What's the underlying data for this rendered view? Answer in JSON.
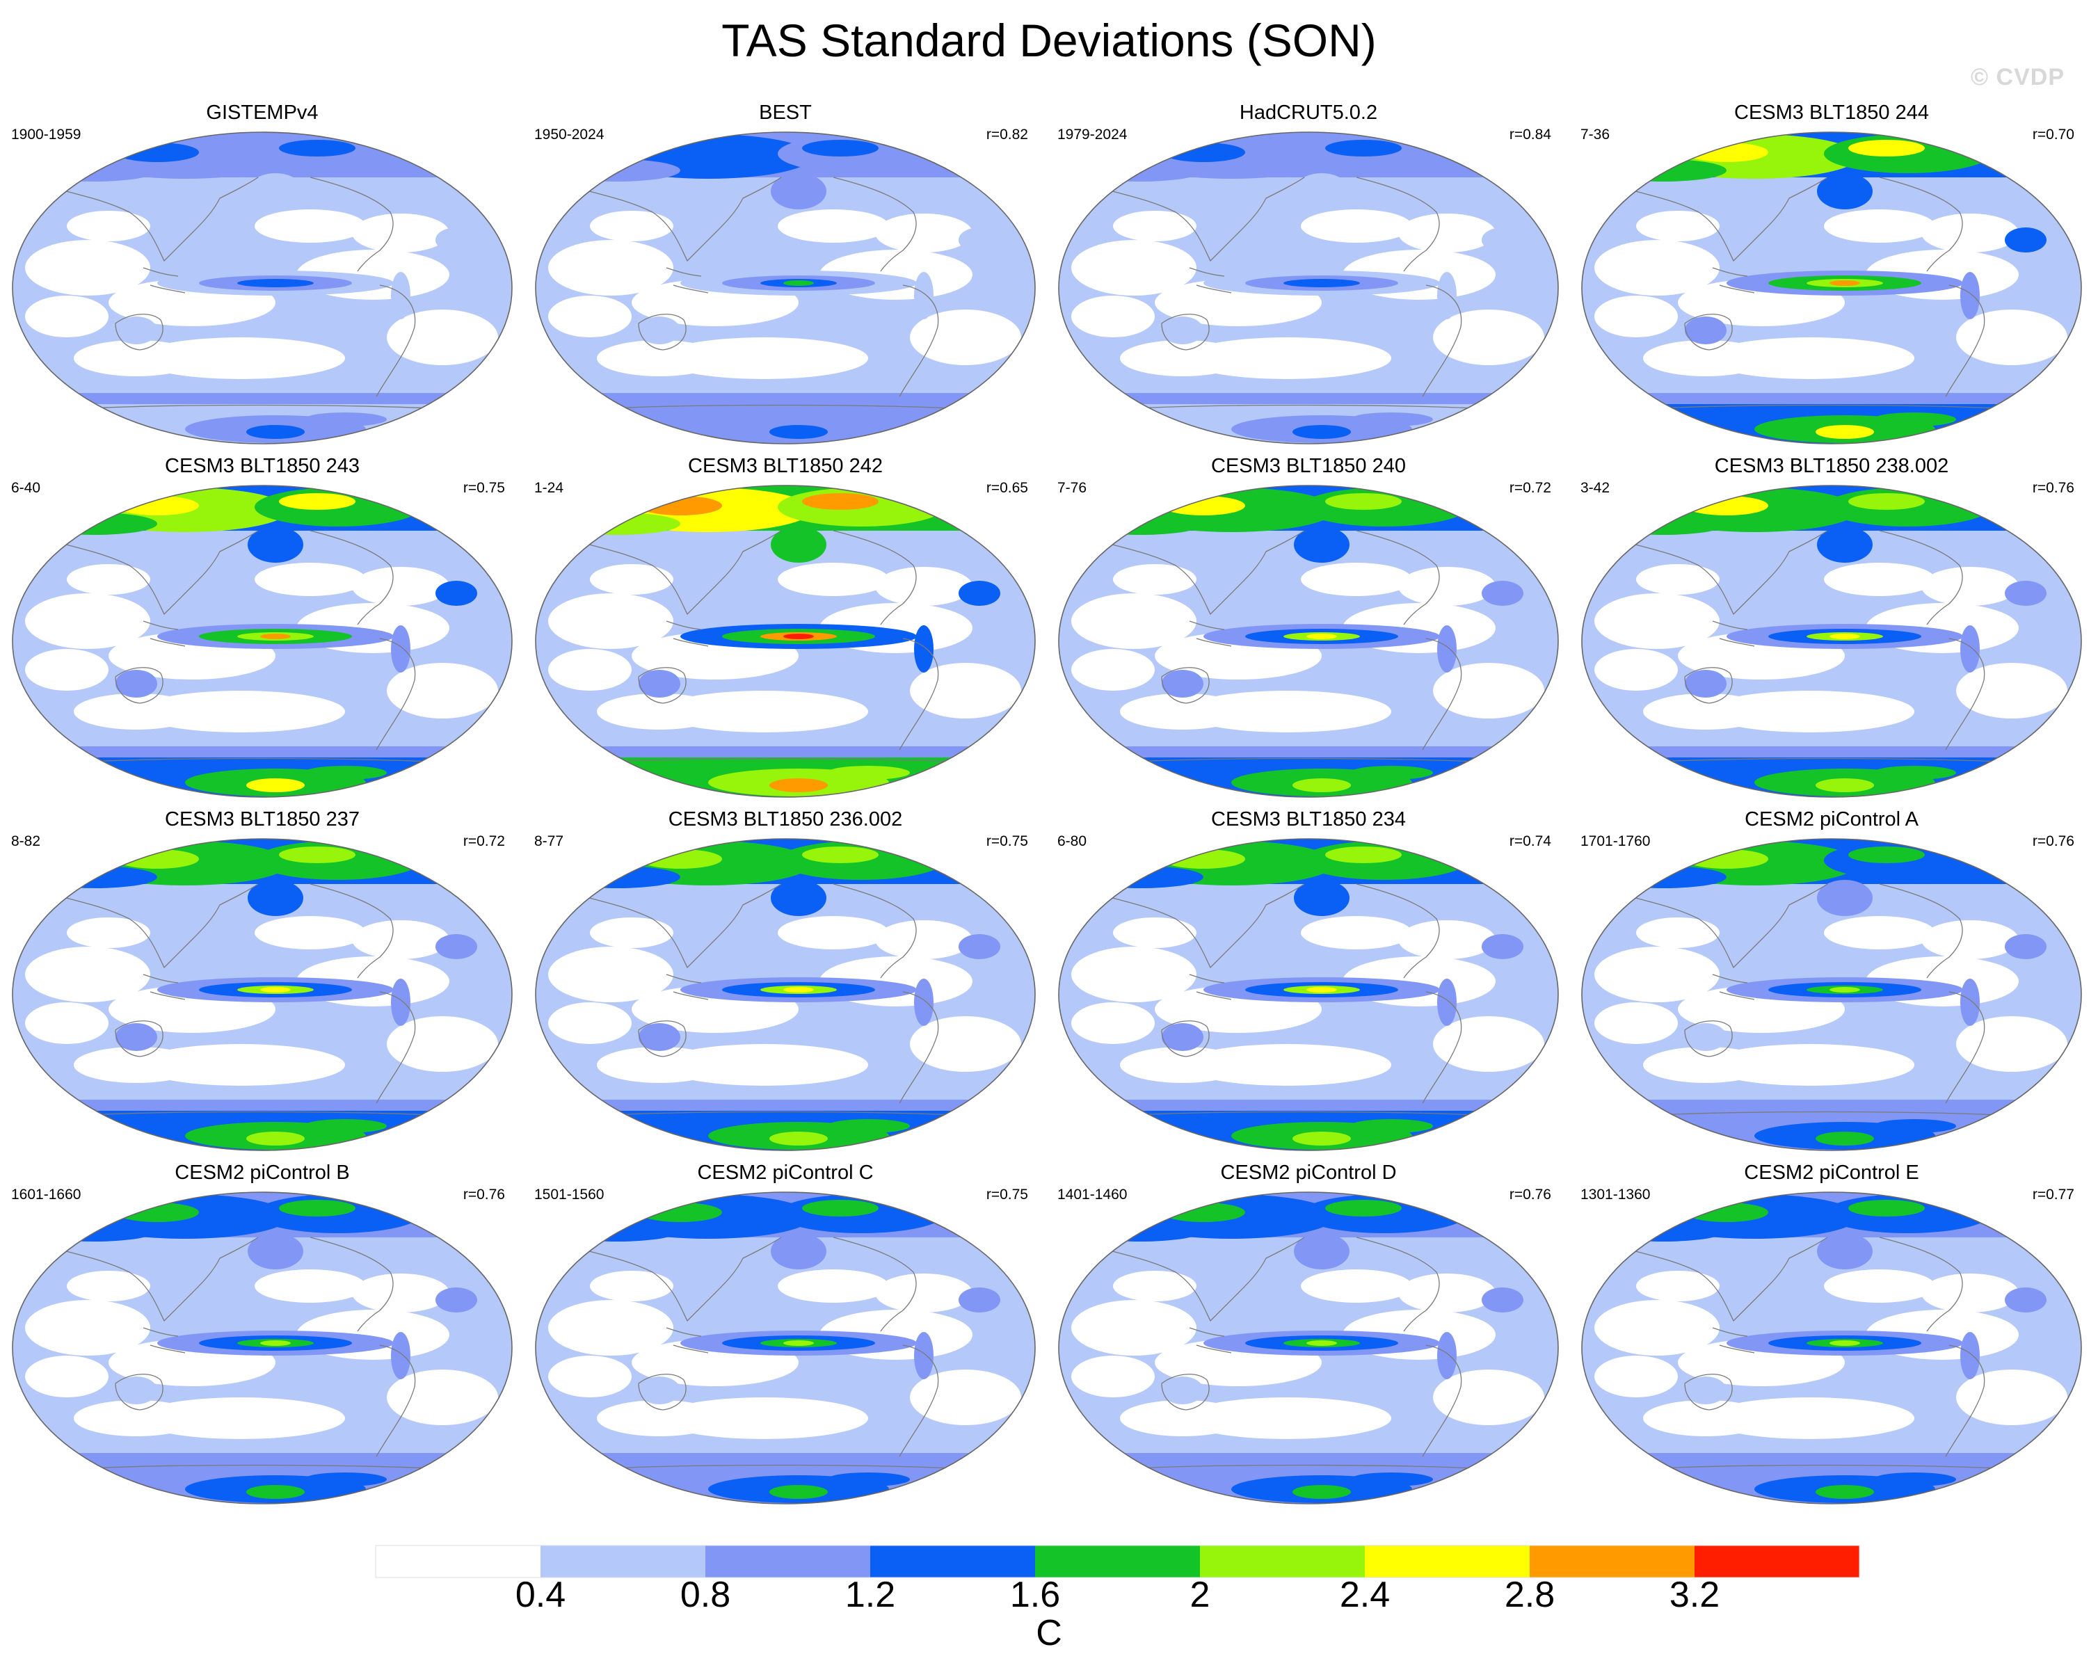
{
  "figure": {
    "title": "TAS Standard Deviations (SON)",
    "watermark": "© CVDP"
  },
  "colorbar": {
    "unit": "C",
    "levels": [
      "0.4",
      "0.8",
      "1.2",
      "1.6",
      "2",
      "2.4",
      "2.8",
      "3.2"
    ],
    "colors": [
      "#ffffff",
      "#b4c8fa",
      "#8296f5",
      "#0a5ff5",
      "#14c328",
      "#96f50a",
      "#ffff00",
      "#ff9b00",
      "#ff1e00"
    ]
  },
  "map_colors": {
    "ocean_bg": "#ffffff",
    "coast": "#7a7a7a",
    "outline": "#666666"
  },
  "panels": [
    {
      "title": "GISTEMPv4",
      "period": "1900-1959",
      "corr": "",
      "intensity": 0.6
    },
    {
      "title": "BEST",
      "period": "1950-2024",
      "corr": "r=0.82",
      "intensity": 0.7
    },
    {
      "title": "HadCRUT5.0.2",
      "period": "1979-2024",
      "corr": "r=0.84",
      "intensity": 0.6
    },
    {
      "title": "CESM3 BLT1850 244",
      "period": "7-36",
      "corr": "r=0.70",
      "intensity": 1.3
    },
    {
      "title": "CESM3 BLT1850 243",
      "period": "6-40",
      "corr": "r=0.75",
      "intensity": 1.3
    },
    {
      "title": "CESM3 BLT1850 242",
      "period": "1-24",
      "corr": "r=0.65",
      "intensity": 1.6
    },
    {
      "title": "CESM3 BLT1850 240",
      "period": "7-76",
      "corr": "r=0.72",
      "intensity": 1.2
    },
    {
      "title": "CESM3 BLT1850 238.002",
      "period": "3-42",
      "corr": "r=0.76",
      "intensity": 1.2
    },
    {
      "title": "CESM3 BLT1850 237",
      "period": "8-82",
      "corr": "r=0.72",
      "intensity": 1.1
    },
    {
      "title": "CESM3 BLT1850 236.002",
      "period": "8-77",
      "corr": "r=0.75",
      "intensity": 1.1
    },
    {
      "title": "CESM3 BLT1850 234",
      "period": "6-80",
      "corr": "r=0.74",
      "intensity": 1.1
    },
    {
      "title": "CESM2 piControl A",
      "period": "1701-1760",
      "corr": "r=0.76",
      "intensity": 1.0
    },
    {
      "title": "CESM2 piControl B",
      "period": "1601-1660",
      "corr": "r=0.76",
      "intensity": 0.95
    },
    {
      "title": "CESM2 piControl C",
      "period": "1501-1560",
      "corr": "r=0.75",
      "intensity": 0.95
    },
    {
      "title": "CESM2 piControl D",
      "period": "1401-1460",
      "corr": "r=0.76",
      "intensity": 0.95
    },
    {
      "title": "CESM2 piControl E",
      "period": "1301-1360",
      "corr": "r=0.77",
      "intensity": 0.95
    }
  ]
}
